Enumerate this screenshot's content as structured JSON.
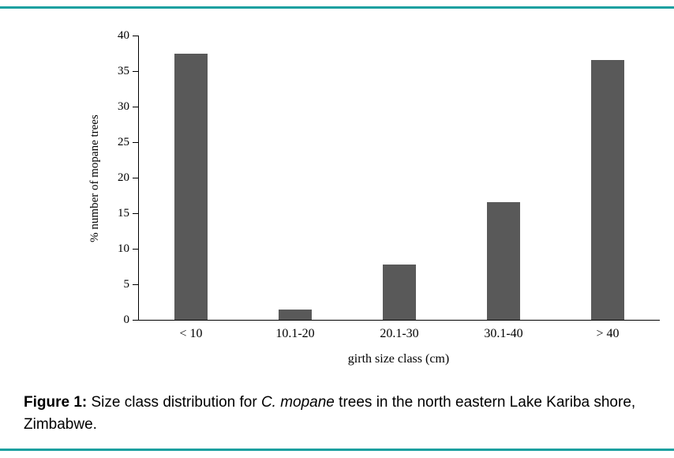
{
  "accent_color": "#1aa0a0",
  "chart_data": {
    "type": "bar",
    "categories": [
      "< 10",
      "10.1-20",
      "20.1-30",
      "30.1-40",
      "> 40"
    ],
    "values": [
      37.4,
      1.5,
      7.8,
      16.6,
      36.6
    ],
    "title": "",
    "xlabel": "girth size class (cm)",
    "ylabel": "% number of mopane trees",
    "ylim": [
      0,
      40
    ],
    "yticks": [
      0,
      5,
      10,
      15,
      20,
      25,
      30,
      35,
      40
    ],
    "bar_color": "#595959",
    "grid": false,
    "legend": "none"
  },
  "caption": {
    "label": "Figure 1:",
    "before_italic": " Size class distribution for ",
    "italic": "C. mopane",
    "after_italic": " trees in the north eastern Lake Kariba shore, Zimbabwe."
  }
}
